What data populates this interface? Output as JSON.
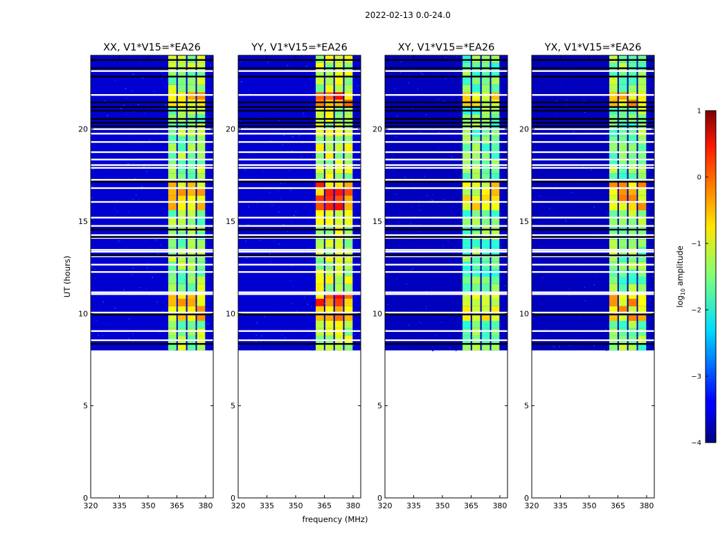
{
  "chart_data": {
    "type": "heatmap",
    "suptitle": "2022-02-13 0.0-24.0",
    "xlabel": "frequency (MHz)",
    "ylabel": "UT (hours)",
    "colorbar_label": "log10 amplitude",
    "colorbar_label_base": "log",
    "colorbar_label_sub": "10",
    "colorbar_label_rest": " amplitude",
    "colorbar_range": [
      -4,
      1
    ],
    "colorbar_ticks": [
      {
        "v": 1,
        "t": "1"
      },
      {
        "v": 0,
        "t": "0"
      },
      {
        "v": -1,
        "t": "−1"
      },
      {
        "v": -2,
        "t": "−2"
      },
      {
        "v": -3,
        "t": "−3"
      },
      {
        "v": -4,
        "t": "−4"
      }
    ],
    "colormap": "jet",
    "xlim": [
      320,
      384
    ],
    "ylim": [
      0,
      24
    ],
    "x_ticks": [
      320,
      335,
      350,
      365,
      380
    ],
    "y_ticks": [
      0,
      5,
      10,
      15,
      20
    ],
    "data_start_hour": 8.0,
    "band_range_mhz": [
      360.5,
      380.5
    ],
    "panels": [
      {
        "title": "XX, V1*V15=*EA26",
        "background_log_amp": -3.6,
        "band_log_amp": -1.4,
        "peak_log_amp": -0.6
      },
      {
        "title": "YY, V1*V15=*EA26",
        "background_log_amp": -3.6,
        "band_log_amp": -1.2,
        "peak_log_amp": 0.1
      },
      {
        "title": "XY, V1*V15=*EA26",
        "background_log_amp": -3.7,
        "band_log_amp": -1.6,
        "peak_log_amp": -0.8
      },
      {
        "title": "YX, V1*V15=*EA26",
        "background_log_amp": -3.7,
        "band_log_amp": -1.5,
        "peak_log_amp": -0.5
      }
    ],
    "blank_rows_hours": [
      8.55,
      9.05,
      10.05,
      11.05,
      11.15,
      12.25,
      12.65,
      13.1,
      13.35,
      13.45,
      14.1,
      14.25,
      14.75,
      15.2,
      16.05,
      16.8,
      17.25,
      17.9,
      18.05,
      18.35,
      18.75,
      19.3,
      19.75,
      20.0,
      21.85,
      23.15
    ],
    "black_rows_hours": [
      8.35,
      9.95,
      13.15,
      14.15,
      14.55,
      17.15,
      20.15,
      20.35,
      20.55,
      21.0,
      21.2,
      21.45,
      22.85,
      23.3,
      23.75
    ]
  }
}
